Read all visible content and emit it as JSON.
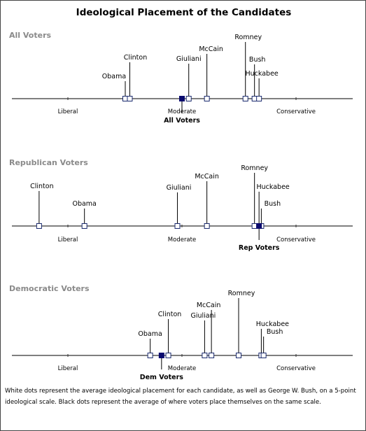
{
  "chart_data": {
    "type": "scatter",
    "title": "Ideological Placement of the Candidates",
    "scale": {
      "min": 1,
      "max": 5,
      "tick_labels": [
        "Liberal",
        "Moderate",
        "Conservative"
      ],
      "tick_values": [
        2,
        3,
        4
      ]
    },
    "panels": [
      {
        "name": "All Voters",
        "voters": {
          "label": "All Voters",
          "value": 3.0
        },
        "candidates": [
          {
            "name": "Obama",
            "value": 2.5
          },
          {
            "name": "Clinton",
            "value": 2.54
          },
          {
            "name": "Giuliani",
            "value": 3.06
          },
          {
            "name": "McCain",
            "value": 3.22
          },
          {
            "name": "Romney",
            "value": 3.56
          },
          {
            "name": "Bush",
            "value": 3.64
          },
          {
            "name": "Huckabee",
            "value": 3.68
          }
        ]
      },
      {
        "name": "Republican Voters",
        "voters": {
          "label": "Rep Voters",
          "value": 3.68
        },
        "candidates": [
          {
            "name": "Clinton",
            "value": 1.74
          },
          {
            "name": "Obama",
            "value": 2.14
          },
          {
            "name": "Giuliani",
            "value": 2.96
          },
          {
            "name": "McCain",
            "value": 3.22
          },
          {
            "name": "Romney",
            "value": 3.64
          },
          {
            "name": "Huckabee",
            "value": 3.68
          },
          {
            "name": "Bush",
            "value": 3.7
          }
        ]
      },
      {
        "name": "Democratic Voters",
        "voters": {
          "label": "Dem Voters",
          "value": 2.82
        },
        "candidates": [
          {
            "name": "Obama",
            "value": 2.72
          },
          {
            "name": "Clinton",
            "value": 2.88
          },
          {
            "name": "Giuliani",
            "value": 3.2
          },
          {
            "name": "McCain",
            "value": 3.26
          },
          {
            "name": "Romney",
            "value": 3.5
          },
          {
            "name": "Huckabee",
            "value": 3.7
          },
          {
            "name": "Bush",
            "value": 3.72
          }
        ]
      }
    ],
    "colors": {
      "voter_dot": "#0a0a6e",
      "candidate_dot": "#ffffff",
      "panel_title": "#8a8a8a",
      "axis": "#333333"
    }
  },
  "footnote": "White dots represent the average ideological placement for each candidate, as well as George W. Bush, on a 5-point ideological scale. Black dots represent the average of where voters place themselves on the same scale."
}
